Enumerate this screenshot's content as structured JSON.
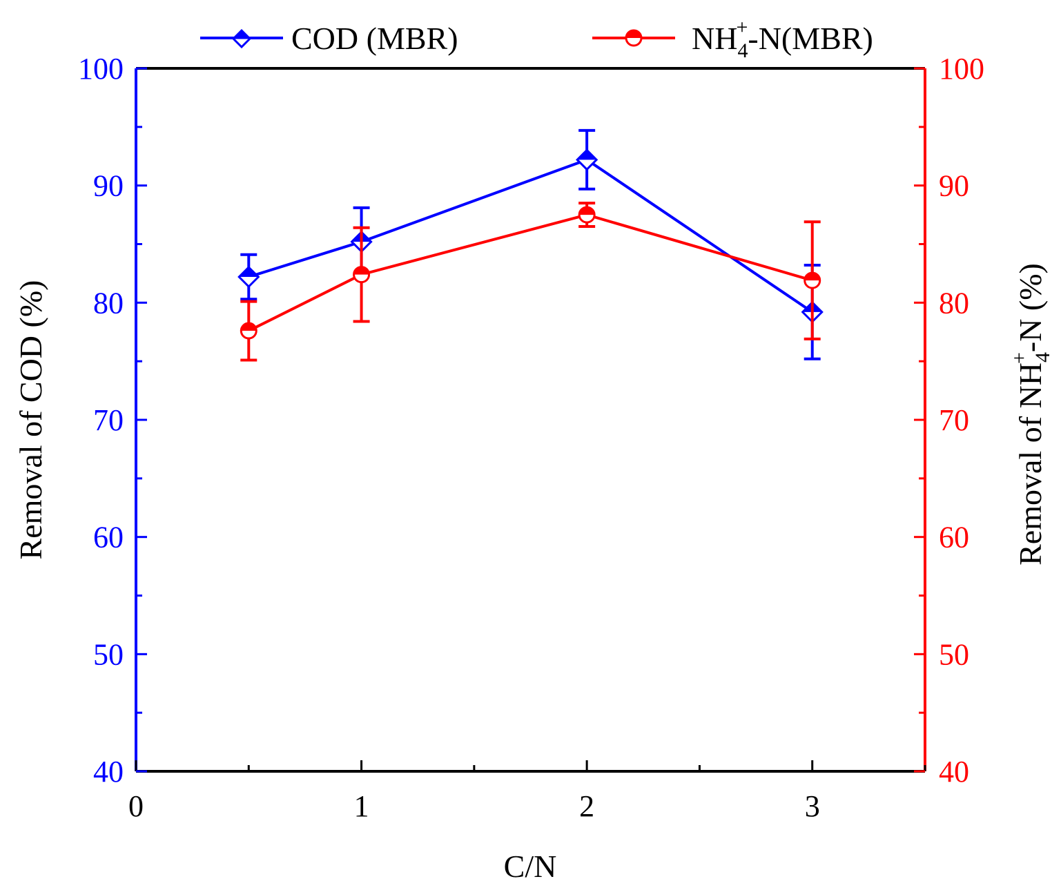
{
  "chart_data": {
    "type": "line",
    "xlabel": "C/N",
    "ylabel_left": "Removal of COD (%)",
    "ylabel_right_prefix": "Removal of NH",
    "ylabel_right_sub": "4",
    "ylabel_right_sup": "+",
    "ylabel_right_suffix": "-N (%)",
    "xlim": [
      0,
      3.5
    ],
    "ylim_left": [
      40,
      100
    ],
    "ylim_right": [
      40,
      100
    ],
    "x_ticks": [
      0,
      1,
      2,
      3
    ],
    "x_tick_labels": [
      "0",
      "1",
      "2",
      "3"
    ],
    "y_ticks": [
      40,
      50,
      60,
      70,
      80,
      90,
      100
    ],
    "y_tick_labels": [
      "40",
      "50",
      "60",
      "70",
      "80",
      "90",
      "100"
    ],
    "series": [
      {
        "name": "COD (MBR)",
        "color": "#0000ff",
        "marker": "diamond",
        "axis": "left",
        "x": [
          0.5,
          1,
          2,
          3
        ],
        "values": [
          82.2,
          85.2,
          92.2,
          79.2
        ],
        "errors": [
          1.9,
          2.9,
          2.5,
          4.0
        ]
      },
      {
        "name_prefix": "NH",
        "name_sub": "4",
        "name_sup": "+",
        "name_suffix": "-N(MBR)",
        "color": "#ff0000",
        "marker": "circle",
        "axis": "right",
        "x": [
          0.5,
          1,
          2,
          3
        ],
        "values": [
          77.6,
          82.4,
          87.5,
          81.9
        ],
        "errors": [
          2.5,
          4.0,
          1.0,
          5.0
        ]
      }
    ]
  }
}
